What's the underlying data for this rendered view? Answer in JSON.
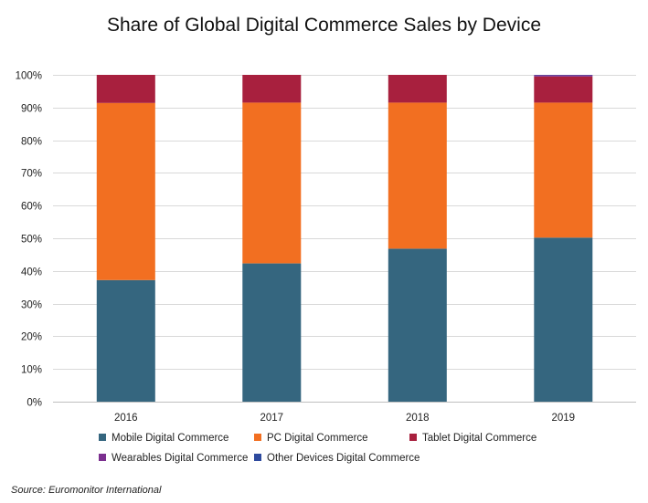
{
  "chart_data": {
    "type": "bar",
    "stacked": true,
    "title": "Share of Global Digital Commerce Sales by Device",
    "categories": [
      "2016",
      "2017",
      "2018",
      "2019"
    ],
    "series": [
      {
        "name": "Mobile Digital Commerce",
        "color": "#35667f",
        "values": [
          37.2,
          42.3,
          46.8,
          50.2
        ]
      },
      {
        "name": "PC Digital Commerce",
        "color": "#f26f21",
        "values": [
          54.2,
          49.2,
          44.7,
          41.3
        ]
      },
      {
        "name": "Tablet Digital Commerce",
        "color": "#a8203e",
        "values": [
          8.6,
          8.5,
          8.5,
          8.0
        ]
      },
      {
        "name": "Wearables Digital Commerce",
        "color": "#7b2f8f",
        "values": [
          0.0,
          0.0,
          0.0,
          0.4
        ]
      },
      {
        "name": "Other Devices Digital Commerce",
        "color": "#2e4a9e",
        "values": [
          0.0,
          0.0,
          0.0,
          0.1
        ]
      }
    ],
    "ylim": [
      0,
      100
    ],
    "yticks": [
      0,
      10,
      20,
      30,
      40,
      50,
      60,
      70,
      80,
      90,
      100
    ],
    "ytick_labels": [
      "0%",
      "10%",
      "20%",
      "30%",
      "40%",
      "50%",
      "60%",
      "70%",
      "80%",
      "90%",
      "100%"
    ],
    "grid": true,
    "legend_position": "bottom",
    "source": "Source: Euromonitor International"
  }
}
